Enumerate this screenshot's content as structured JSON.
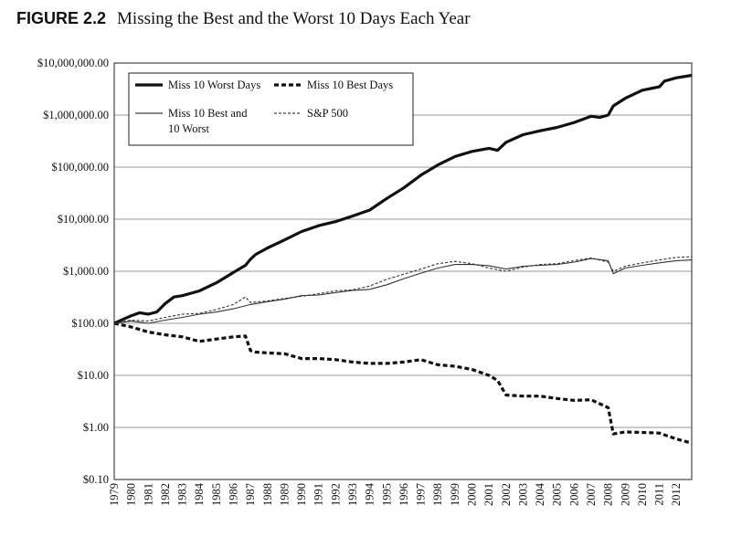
{
  "figure": {
    "label": "FIGURE 2.2",
    "title": "Missing the Best and the Worst 10 Days Each Year"
  },
  "chart_data": {
    "type": "line",
    "title": "Missing the Best and the Worst 10 Days Each Year",
    "xlabel": "",
    "ylabel": "",
    "y_scale": "log",
    "ylim": [
      0.1,
      10000000
    ],
    "xlim": [
      1979,
      2012.9
    ],
    "grid": "horizontal",
    "legend_position": "top-left",
    "x_ticks": [
      "1979",
      "1980",
      "1981",
      "1982",
      "1983",
      "1984",
      "1985",
      "1986",
      "1987",
      "1988",
      "1989",
      "1990",
      "1991",
      "1992",
      "1993",
      "1994",
      "1995",
      "1996",
      "1997",
      "1998",
      "1999",
      "2000",
      "2001",
      "2002",
      "2003",
      "2004",
      "2005",
      "2006",
      "2007",
      "2008",
      "2009",
      "2010",
      "2011",
      "2012"
    ],
    "y_ticks": [
      {
        "value": 0.1,
        "label": "$0.10"
      },
      {
        "value": 1,
        "label": "$1.00"
      },
      {
        "value": 10,
        "label": "$10.00"
      },
      {
        "value": 100,
        "label": "$100.00"
      },
      {
        "value": 1000,
        "label": "$1,000.00"
      },
      {
        "value": 10000,
        "label": "$10,000.00"
      },
      {
        "value": 100000,
        "label": "$100,000.00"
      },
      {
        "value": 1000000,
        "label": "$1,000,000.00"
      },
      {
        "value": 10000000,
        "label": "$10,000,000.00"
      }
    ],
    "series": [
      {
        "name": "Miss 10 Worst Days",
        "style": "thick-solid",
        "color": "#111111",
        "x": [
          1979,
          1980,
          1980.5,
          1981,
          1981.5,
          1982,
          1982.5,
          1983,
          1984,
          1985,
          1986,
          1986.7,
          1987,
          1987.3,
          1988,
          1989,
          1990,
          1991,
          1992,
          1993,
          1994,
          1995,
          1996,
          1997,
          1998,
          1999,
          2000,
          2001,
          2001.5,
          2002,
          2003,
          2004,
          2005,
          2006,
          2007,
          2007.5,
          2008,
          2008.3,
          2009,
          2010,
          2011,
          2011.3,
          2012,
          2012.9
        ],
        "y": [
          100,
          140,
          160,
          150,
          165,
          240,
          320,
          340,
          420,
          600,
          950,
          1300,
          1700,
          2100,
          2800,
          4000,
          5800,
          7500,
          9000,
          11500,
          15000,
          25000,
          40000,
          70000,
          110000,
          160000,
          200000,
          230000,
          210000,
          300000,
          420000,
          500000,
          580000,
          720000,
          950000,
          900000,
          1000000,
          1500000,
          2100000,
          3000000,
          3500000,
          4500000,
          5200000,
          5800000
        ]
      },
      {
        "name": "Miss 10 Best Days",
        "style": "thick-dashed",
        "color": "#111111",
        "x": [
          1979,
          1980,
          1981,
          1982,
          1983,
          1984,
          1985,
          1986,
          1986.7,
          1987,
          1987.3,
          1988,
          1989,
          1990,
          1991,
          1992,
          1993,
          1994,
          1995,
          1996,
          1997,
          1998,
          1999,
          2000,
          2001,
          2001.5,
          2002,
          2003,
          2004,
          2005,
          2006,
          2007,
          2008,
          2008.3,
          2009,
          2010,
          2011,
          2012,
          2012.9
        ],
        "y": [
          100,
          85,
          68,
          60,
          55,
          45,
          50,
          55,
          57,
          30,
          28,
          27,
          26,
          21,
          21,
          20,
          18,
          17,
          17,
          18,
          20,
          16,
          15,
          13,
          10,
          8,
          4.2,
          4.0,
          4.0,
          3.6,
          3.3,
          3.4,
          2.4,
          0.75,
          0.82,
          0.8,
          0.78,
          0.6,
          0.5
        ]
      },
      {
        "name": "Miss 10 Best and 10 Worst",
        "style": "thin-solid",
        "color": "#333333",
        "x": [
          1979,
          1980,
          1981,
          1982,
          1983,
          1984,
          1985,
          1986,
          1987,
          1988,
          1989,
          1990,
          1991,
          1992,
          1993,
          1994,
          1995,
          1996,
          1997,
          1998,
          1999,
          2000,
          2001,
          2002,
          2003,
          2004,
          2005,
          2006,
          2007,
          2008,
          2008.3,
          2009,
          2010,
          2011,
          2012,
          2012.9
        ],
        "y": [
          100,
          110,
          100,
          115,
          130,
          150,
          165,
          190,
          230,
          260,
          290,
          340,
          350,
          390,
          430,
          450,
          550,
          720,
          920,
          1150,
          1350,
          1350,
          1280,
          1100,
          1250,
          1300,
          1350,
          1500,
          1750,
          1600,
          900,
          1150,
          1300,
          1450,
          1600,
          1650
        ]
      },
      {
        "name": "S&P 500",
        "style": "thin-dashed",
        "color": "#333333",
        "x": [
          1979,
          1980,
          1981,
          1982,
          1983,
          1984,
          1985,
          1986,
          1986.7,
          1987,
          1988,
          1989,
          1990,
          1991,
          1992,
          1993,
          1994,
          1995,
          1996,
          1997,
          1998,
          1999,
          2000,
          2001,
          2002,
          2003,
          2004,
          2005,
          2006,
          2007,
          2008,
          2008.3,
          2009,
          2010,
          2011,
          2012,
          2012.9
        ],
        "y": [
          100,
          115,
          110,
          130,
          150,
          155,
          185,
          230,
          320,
          250,
          270,
          300,
          330,
          370,
          420,
          440,
          520,
          700,
          880,
          1100,
          1400,
          1550,
          1400,
          1150,
          1000,
          1200,
          1350,
          1400,
          1600,
          1800,
          1500,
          1000,
          1250,
          1450,
          1650,
          1850,
          1900
        ]
      }
    ]
  },
  "legend": {
    "items": [
      {
        "label": "Miss 10 Worst Days",
        "style": "thick-solid"
      },
      {
        "label": "Miss 10 Best Days",
        "style": "thick-dashed"
      },
      {
        "label_lines": [
          "Miss 10 Best and",
          "10 Worst"
        ],
        "style": "thin-solid"
      },
      {
        "label": "S&P 500",
        "style": "thin-dashed"
      }
    ]
  }
}
